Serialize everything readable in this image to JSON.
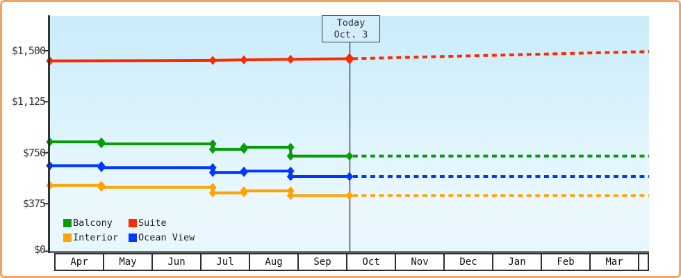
{
  "page": {
    "border_color": "#f4a460",
    "plot_bg_top": "#c9ecfa",
    "plot_bg_bottom": "#ecf8fe",
    "axis_color": "#333333"
  },
  "chart_data": {
    "type": "line",
    "title": "",
    "description": "Cabin price history and projection by month; solid lines are observed prices up to today, dotted lines are projected prices after today",
    "today_label": {
      "line1": "Today",
      "line2": "Oct. 3"
    },
    "y_axis": {
      "tick_labels": [
        "$1,500",
        "$1,125",
        "$750",
        "$375",
        "$0"
      ],
      "tick_values": [
        1500,
        1125,
        750,
        375,
        0
      ],
      "range": [
        0,
        1500
      ],
      "grid": false
    },
    "x_axis": {
      "months": [
        "Apr",
        "May",
        "Jun",
        "Jul",
        "Aug",
        "Sep",
        "Oct",
        "Nov",
        "Dec",
        "Jan",
        "Feb",
        "Mar"
      ]
    },
    "legend_position": "bottom-left-inside",
    "legend": [
      {
        "name": "Balcony",
        "color": "#0a9b0a"
      },
      {
        "name": "Suite",
        "color": "#f92c00"
      },
      {
        "name": "Interior",
        "color": "#ffa305"
      },
      {
        "name": "Ocean View",
        "color": "#0337fd"
      }
    ],
    "today_date": "Oct 3",
    "date_positions": {
      "Apr 1": -0.09,
      "May 1": 0.97,
      "Jul 8": 3.26,
      "Jul 28": 3.9,
      "Aug 26": 4.86,
      "Oct 3": 6.07,
      "Mar 31": 12.23
    },
    "series": [
      {
        "name": "Interior",
        "color": "#ffa305",
        "solid": [
          [
            "Apr 1",
            510
          ],
          [
            "May 1",
            510
          ],
          [
            "May 1",
            495
          ],
          [
            "Jul 8",
            495
          ],
          [
            "Jul 8",
            455
          ],
          [
            "Jul 28",
            455
          ],
          [
            "Jul 28",
            470
          ],
          [
            "Aug 26",
            470
          ],
          [
            "Aug 26",
            435
          ],
          [
            "Oct 3",
            435
          ]
        ],
        "projected": [
          [
            "Oct 3",
            435
          ],
          [
            "Mar 31",
            435
          ]
        ]
      },
      {
        "name": "Ocean View",
        "color": "#0337fd",
        "solid": [
          [
            "Apr 1",
            655
          ],
          [
            "May 1",
            655
          ],
          [
            "May 1",
            640
          ],
          [
            "Jul 8",
            640
          ],
          [
            "Jul 8",
            605
          ],
          [
            "Jul 28",
            605
          ],
          [
            "Jul 28",
            615
          ],
          [
            "Aug 26",
            615
          ],
          [
            "Aug 26",
            575
          ],
          [
            "Oct 3",
            575
          ]
        ],
        "projected": [
          [
            "Oct 3",
            575
          ],
          [
            "Mar 31",
            575
          ]
        ]
      },
      {
        "name": "Balcony",
        "color": "#0a9b0a",
        "solid": [
          [
            "Apr 1",
            830
          ],
          [
            "May 1",
            830
          ],
          [
            "May 1",
            815
          ],
          [
            "Jul 8",
            815
          ],
          [
            "Jul 8",
            775
          ],
          [
            "Jul 28",
            775
          ],
          [
            "Jul 28",
            790
          ],
          [
            "Aug 26",
            790
          ],
          [
            "Aug 26",
            725
          ],
          [
            "Oct 3",
            725
          ]
        ],
        "projected": [
          [
            "Oct 3",
            725
          ],
          [
            "Mar 31",
            725
          ]
        ]
      },
      {
        "name": "Suite",
        "color": "#f92c00",
        "solid": [
          [
            "Apr 1",
            1425
          ],
          [
            "Jul 8",
            1429
          ],
          [
            "Jul 28",
            1433
          ],
          [
            "Aug 26",
            1437
          ],
          [
            "Oct 3",
            1441
          ]
        ],
        "projected": [
          [
            "Oct 3",
            1441
          ],
          [
            "Mar 31",
            1494
          ]
        ],
        "today_marker_large": true
      }
    ]
  }
}
